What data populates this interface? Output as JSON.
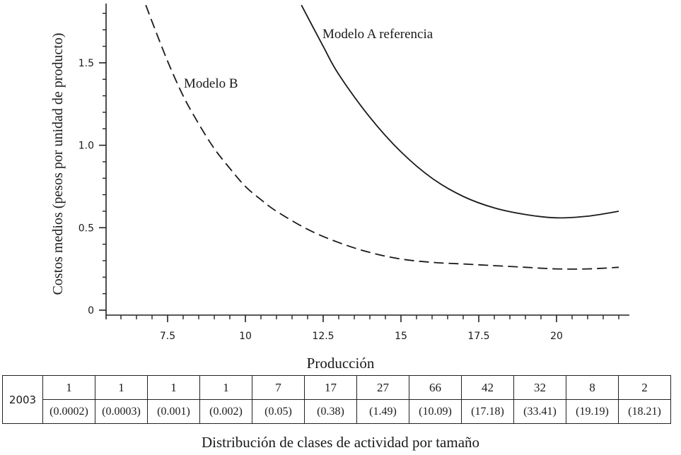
{
  "chart_data": {
    "type": "line",
    "xlabel": "Producción",
    "ylabel": "Costos medios (pesos por unidad de producto)",
    "xlim": [
      5.0,
      22.5
    ],
    "ylim": [
      -0.03,
      1.85
    ],
    "xticks": [
      7.5,
      10,
      12.5,
      15,
      17.5,
      20
    ],
    "xtick_labels": [
      "7.5",
      "10",
      "12.5",
      "15",
      "17.5",
      "20"
    ],
    "yticks": [
      0,
      0.5,
      1.0,
      1.5
    ],
    "ytick_labels": [
      "0",
      "0.5",
      "1.0",
      "1.5"
    ],
    "series": [
      {
        "name": "Modelo A referencia",
        "style": "solid",
        "x": [
          11.8,
          12.5,
          13.0,
          14.0,
          15.0,
          16.0,
          17.0,
          18.0,
          19.0,
          20.0,
          21.0,
          22.0
        ],
        "y": [
          1.85,
          1.6,
          1.43,
          1.17,
          0.96,
          0.8,
          0.69,
          0.62,
          0.58,
          0.56,
          0.57,
          0.6
        ]
      },
      {
        "name": "Modelo B",
        "style": "dashed",
        "x": [
          6.8,
          7.0,
          7.5,
          8.0,
          8.5,
          9.0,
          9.5,
          10.0,
          10.5,
          11.0,
          12.0,
          13.0,
          14.0,
          15.0,
          16.0,
          17.0,
          18.0,
          19.0,
          20.0,
          21.0,
          22.0
        ],
        "y": [
          1.85,
          1.75,
          1.51,
          1.3,
          1.13,
          0.98,
          0.86,
          0.75,
          0.67,
          0.6,
          0.49,
          0.41,
          0.35,
          0.31,
          0.29,
          0.28,
          0.27,
          0.26,
          0.25,
          0.25,
          0.26
        ]
      }
    ],
    "annotations": [
      "Modelo A referencia",
      "Modelo B"
    ]
  },
  "table": {
    "year": "2003",
    "counts": [
      "1",
      "1",
      "1",
      "1",
      "7",
      "17",
      "27",
      "66",
      "42",
      "32",
      "8",
      "2"
    ],
    "percents": [
      "(0.0002)",
      "(0.0003)",
      "(0.001)",
      "(0.002)",
      "(0.05)",
      "(0.38)",
      "(1.49)",
      "(10.09)",
      "(17.18)",
      "(33.41)",
      "(19.19)",
      "(18.21)"
    ]
  },
  "caption": "Distribución de clases de actividad por tamaño"
}
